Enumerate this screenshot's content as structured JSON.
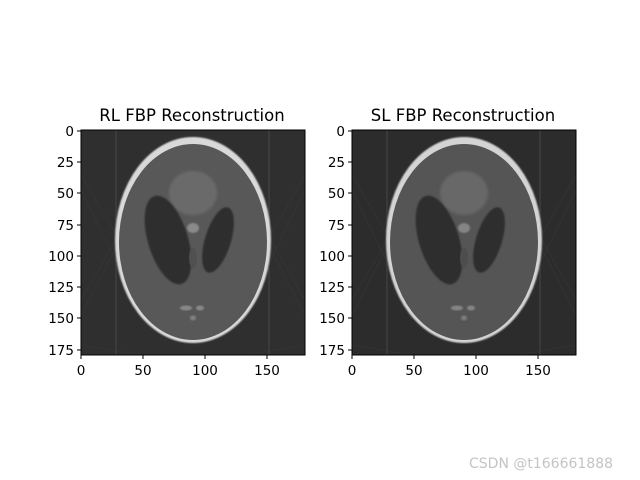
{
  "panels": [
    {
      "title": "RL FBP Reconstruction",
      "x_ticks": [
        "0",
        "50",
        "100",
        "150"
      ],
      "y_ticks": [
        "0",
        "25",
        "50",
        "75",
        "100",
        "125",
        "150",
        "175"
      ]
    },
    {
      "title": "SL FBP Reconstruction",
      "x_ticks": [
        "0",
        "50",
        "100",
        "150"
      ],
      "y_ticks": [
        "0",
        "25",
        "50",
        "75",
        "100",
        "125",
        "150",
        "175"
      ]
    }
  ],
  "watermark": "CSDN @t166661888",
  "colors": {
    "background": "#ffffff",
    "image_bg": "#2f2f2f",
    "skull": "#d9d9d9",
    "brain": "#585858",
    "ventricle": "#2e2e2e",
    "axis": "#000000",
    "watermark": "#c4c4c4"
  }
}
